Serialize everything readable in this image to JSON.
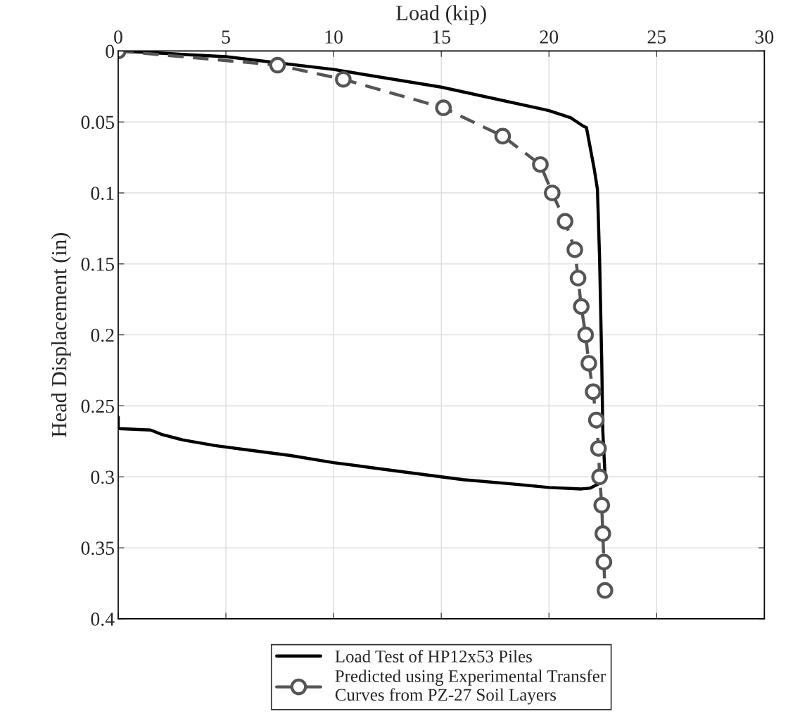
{
  "chart_data": {
    "type": "line",
    "xlabel": "Load (kip)",
    "ylabel": "Head Displacement (in)",
    "xlim": [
      0,
      30
    ],
    "xticks": [
      0,
      5,
      10,
      15,
      20,
      25,
      30
    ],
    "ylim": [
      0.4,
      0
    ],
    "yticks": [
      0,
      0.05,
      0.1,
      0.15,
      0.2,
      0.25,
      0.3,
      0.35,
      0.4
    ],
    "grid": true,
    "legend": "bottom",
    "series": [
      {
        "name": "Load Test of HP12x53 Piles",
        "color": "#000000",
        "marker": "none",
        "line_style": "solid",
        "x": [
          0,
          5,
          10,
          15,
          20,
          21,
          21.6,
          21.74,
          22.1,
          22.25,
          22.35,
          22.45,
          22.5,
          22.6,
          22.3,
          21.9,
          21.5,
          20,
          18.3,
          16,
          14,
          12,
          10,
          8,
          6,
          4.5,
          3,
          2,
          1.5,
          0,
          0
        ],
        "values": [
          0,
          0.004,
          0.013,
          0.0255,
          0.042,
          0.047,
          0.053,
          0.054,
          0.083,
          0.0975,
          0.146,
          0.219,
          0.268,
          0.298,
          0.305,
          0.308,
          0.3085,
          0.3075,
          0.305,
          0.302,
          0.298,
          0.294,
          0.29,
          0.285,
          0.281,
          0.278,
          0.274,
          0.27,
          0.267,
          0.266,
          0.258
        ]
      },
      {
        "name": "Predicted using Experimental Transfer Curves from PZ-27 Soil Layers",
        "color": "#555555",
        "marker": "circle",
        "line_style": "dashed",
        "x": [
          0,
          7.4,
          10.45,
          15.1,
          17.85,
          19.6,
          20.15,
          20.75,
          21.2,
          21.35,
          21.5,
          21.7,
          21.85,
          22.05,
          22.2,
          22.3,
          22.35,
          22.45,
          22.5,
          22.55,
          22.6
        ],
        "values": [
          0,
          0.01,
          0.02,
          0.04,
          0.06,
          0.08,
          0.1,
          0.12,
          0.14,
          0.16,
          0.18,
          0.2,
          0.22,
          0.24,
          0.26,
          0.28,
          0.3,
          0.32,
          0.34,
          0.36,
          0.38
        ]
      }
    ]
  }
}
